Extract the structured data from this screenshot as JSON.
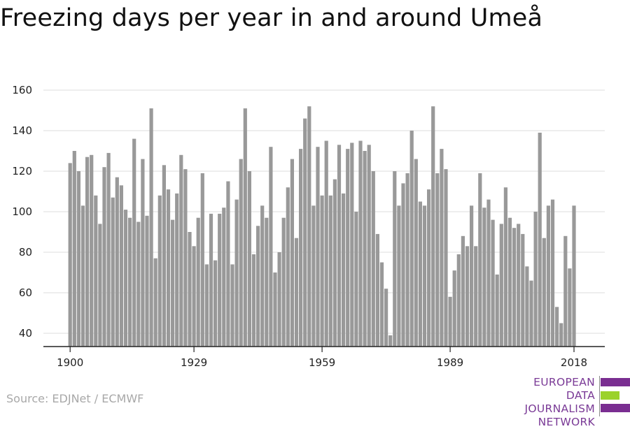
{
  "chart_data": {
    "type": "bar",
    "title": "Freezing days per year in and around Umeå",
    "xlabel": "",
    "ylabel": "",
    "x_start": 1900,
    "x_end": 2018,
    "ylim": [
      33,
      165
    ],
    "yticks": [
      40,
      60,
      80,
      100,
      120,
      140,
      160
    ],
    "xticks": [
      1900,
      1929,
      1959,
      1989,
      2018
    ],
    "grid": true,
    "bar_color": "#999999",
    "values": [
      124,
      130,
      120,
      103,
      127,
      128,
      108,
      94,
      122,
      129,
      107,
      117,
      113,
      101,
      97,
      136,
      95,
      126,
      98,
      151,
      77,
      108,
      123,
      111,
      96,
      109,
      128,
      121,
      90,
      83,
      97,
      119,
      74,
      99,
      76,
      99,
      102,
      115,
      74,
      106,
      126,
      151,
      120,
      79,
      93,
      103,
      97,
      132,
      70,
      80,
      97,
      112,
      126,
      87,
      131,
      146,
      152,
      103,
      132,
      108,
      135,
      108,
      116,
      133,
      109,
      131,
      134,
      100,
      135,
      130,
      133,
      120,
      89,
      75,
      62,
      39,
      120,
      103,
      114,
      119,
      140,
      126,
      105,
      103,
      111,
      152,
      119,
      131,
      121,
      58,
      71,
      79,
      88,
      83,
      103,
      83,
      119,
      102,
      106,
      96,
      69,
      94,
      112,
      97,
      92,
      94,
      89,
      73,
      66,
      100,
      139,
      87,
      103,
      106,
      53,
      45,
      88,
      72,
      103
    ]
  },
  "source": "Source: EDJNet / ECMWF",
  "logo": {
    "lines": [
      "EUROPEAN",
      "DATA JOURNALISM",
      "NETWORK"
    ],
    "colors": {
      "purple": "#7a2e91",
      "green": "#9bd22b"
    }
  }
}
